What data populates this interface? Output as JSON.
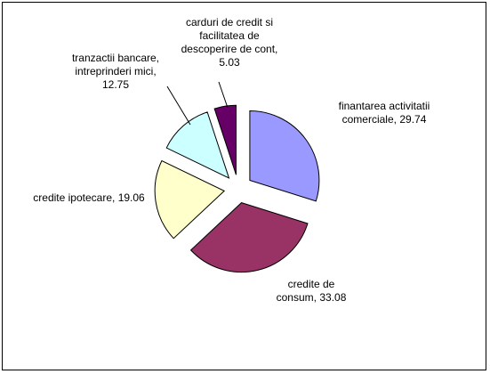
{
  "chart_data": {
    "type": "pie",
    "categories": [
      "finantarea activitatii comerciale",
      "credite de consum",
      "credite ipotecare",
      "tranzactii bancare, intreprinderi mici",
      "carduri de credit si facilitatea de descoperire de cont"
    ],
    "values": [
      29.74,
      33.08,
      19.06,
      12.75,
      5.03
    ],
    "colors": [
      "#9999ff",
      "#993366",
      "#ffffcc",
      "#ccffff",
      "#660066"
    ],
    "exploded": true
  }
}
